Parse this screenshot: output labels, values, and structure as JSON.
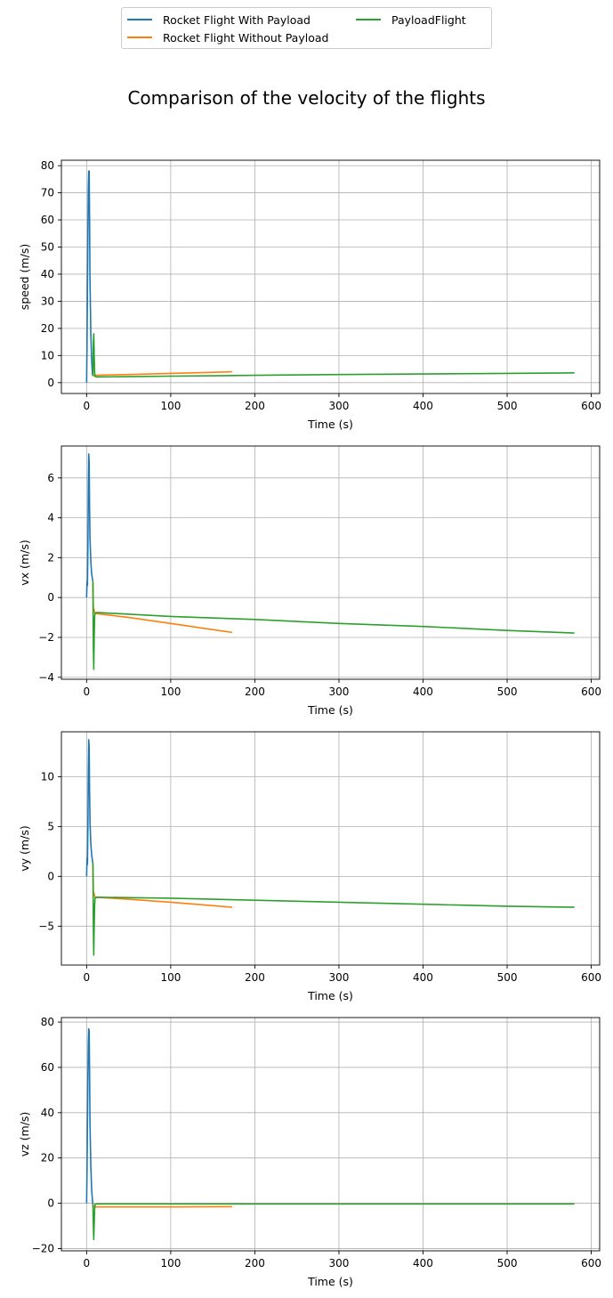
{
  "figure": {
    "title": "Comparison of the velocity of the flights"
  },
  "legend": {
    "placement": "top-center",
    "entries": [
      {
        "label": "Rocket Flight With Payload",
        "color": "#1f77b4"
      },
      {
        "label": "Rocket Flight Without Payload",
        "color": "#ff7f0e"
      },
      {
        "label": "PayloadFlight",
        "color": "#2ca02c"
      }
    ]
  },
  "chart_data": [
    {
      "type": "line",
      "xlabel": "Time (s)",
      "ylabel": "speed (m/s)",
      "xlim": [
        -30,
        610
      ],
      "ylim": [
        -4,
        82
      ],
      "xticks": [
        0,
        100,
        200,
        300,
        400,
        500,
        600
      ],
      "yticks": [
        0,
        10,
        20,
        30,
        40,
        50,
        60,
        70,
        80
      ],
      "grid": true,
      "series": [
        {
          "name": "Rocket Flight With Payload",
          "color": "#1f77b4",
          "x": [
            0,
            0.5,
            1,
            1.5,
            2,
            2.5,
            3,
            3.5,
            4,
            5,
            6,
            7,
            7.5
          ],
          "y": [
            0,
            15,
            35,
            55,
            72,
            78,
            78,
            60,
            38,
            18,
            8,
            3,
            2.5
          ]
        },
        {
          "name": "Rocket Flight Without Payload",
          "color": "#ff7f0e",
          "x": [
            7.5,
            10,
            50,
            100,
            173
          ],
          "y": [
            2.5,
            2.7,
            3.0,
            3.4,
            4.0
          ]
        },
        {
          "name": "PayloadFlight",
          "color": "#2ca02c",
          "x": [
            7.5,
            8,
            8.5,
            9,
            9.5,
            10,
            12,
            50,
            100,
            200,
            300,
            400,
            500,
            580
          ],
          "y": [
            2.5,
            15,
            18,
            10,
            4,
            2.3,
            2.1,
            2.2,
            2.4,
            2.7,
            3.0,
            3.2,
            3.4,
            3.6
          ]
        }
      ]
    },
    {
      "type": "line",
      "xlabel": "Time (s)",
      "ylabel": "vx (m/s)",
      "xlim": [
        -30,
        610
      ],
      "ylim": [
        -4.1,
        7.6
      ],
      "xticks": [
        0,
        100,
        200,
        300,
        400,
        500,
        600
      ],
      "yticks": [
        -4,
        -2,
        0,
        2,
        4,
        6
      ],
      "grid": true,
      "series": [
        {
          "name": "Rocket Flight With Payload",
          "color": "#1f77b4",
          "x": [
            0,
            0.5,
            1,
            1.5,
            2,
            2.5,
            3,
            3.5,
            4,
            5,
            6,
            7,
            7.5
          ],
          "y": [
            0,
            0.8,
            0.6,
            2.5,
            5.5,
            7.2,
            6.8,
            4.5,
            3.0,
            1.8,
            1.2,
            0.9,
            0.8
          ]
        },
        {
          "name": "Rocket Flight Without Payload",
          "color": "#ff7f0e",
          "x": [
            7.5,
            8,
            10,
            50,
            100,
            173
          ],
          "y": [
            0.8,
            -0.5,
            -0.8,
            -1.0,
            -1.3,
            -1.75
          ]
        },
        {
          "name": "PayloadFlight",
          "color": "#2ca02c",
          "x": [
            7.5,
            8,
            8.5,
            9,
            9.5,
            10,
            12,
            100,
            200,
            300,
            400,
            500,
            580
          ],
          "y": [
            0.8,
            -2.5,
            -3.6,
            -2.0,
            -1.0,
            -0.8,
            -0.75,
            -0.95,
            -1.1,
            -1.3,
            -1.45,
            -1.65,
            -1.78
          ]
        }
      ]
    },
    {
      "type": "line",
      "xlabel": "Time (s)",
      "ylabel": "vy (m/s)",
      "xlim": [
        -30,
        610
      ],
      "ylim": [
        -8.9,
        14.5
      ],
      "xticks": [
        0,
        100,
        200,
        300,
        400,
        500,
        600
      ],
      "yticks": [
        -5,
        0,
        5,
        10
      ],
      "grid": true,
      "series": [
        {
          "name": "Rocket Flight With Payload",
          "color": "#1f77b4",
          "x": [
            0,
            0.5,
            1,
            1.5,
            2,
            2.5,
            3,
            3.5,
            4,
            5,
            6,
            7,
            7.5
          ],
          "y": [
            0,
            1.8,
            1.2,
            5,
            10.5,
            13.7,
            13,
            8.5,
            5.5,
            3.2,
            2.2,
            1.5,
            1.3
          ]
        },
        {
          "name": "Rocket Flight Without Payload",
          "color": "#ff7f0e",
          "x": [
            7.5,
            8,
            10,
            50,
            100,
            173
          ],
          "y": [
            1.3,
            -1.5,
            -2.1,
            -2.3,
            -2.6,
            -3.1
          ]
        },
        {
          "name": "PayloadFlight",
          "color": "#2ca02c",
          "x": [
            7.5,
            8,
            8.5,
            9,
            9.5,
            10,
            12,
            100,
            200,
            300,
            400,
            500,
            580
          ],
          "y": [
            1.3,
            -5,
            -7.9,
            -5,
            -3,
            -2.2,
            -2.1,
            -2.2,
            -2.4,
            -2.6,
            -2.8,
            -3.0,
            -3.1
          ]
        }
      ]
    },
    {
      "type": "line",
      "xlabel": "Time (s)",
      "ylabel": "vz (m/s)",
      "xlim": [
        -30,
        610
      ],
      "ylim": [
        -21,
        82
      ],
      "xticks": [
        0,
        100,
        200,
        300,
        400,
        500,
        600
      ],
      "yticks": [
        -20,
        0,
        20,
        40,
        60,
        80
      ],
      "grid": true,
      "series": [
        {
          "name": "Rocket Flight With Payload",
          "color": "#1f77b4",
          "x": [
            0,
            0.5,
            1,
            1.5,
            2,
            2.5,
            3,
            3.5,
            4,
            5,
            6,
            7,
            7.5
          ],
          "y": [
            0,
            15,
            35,
            55,
            71,
            77,
            76,
            58,
            36,
            16,
            6,
            1,
            -0.5
          ]
        },
        {
          "name": "Rocket Flight Without Payload",
          "color": "#ff7f0e",
          "x": [
            7.5,
            8,
            10,
            50,
            100,
            173
          ],
          "y": [
            -0.5,
            -1.5,
            -1.6,
            -1.6,
            -1.6,
            -1.5
          ]
        },
        {
          "name": "PayloadFlight",
          "color": "#2ca02c",
          "x": [
            7.5,
            8,
            8.5,
            9,
            9.5,
            10,
            12,
            100,
            200,
            300,
            400,
            500,
            580
          ],
          "y": [
            -0.5,
            -10,
            -16,
            -9,
            -3,
            -0.5,
            -0.3,
            -0.3,
            -0.3,
            -0.3,
            -0.3,
            -0.3,
            -0.3
          ]
        }
      ]
    }
  ]
}
